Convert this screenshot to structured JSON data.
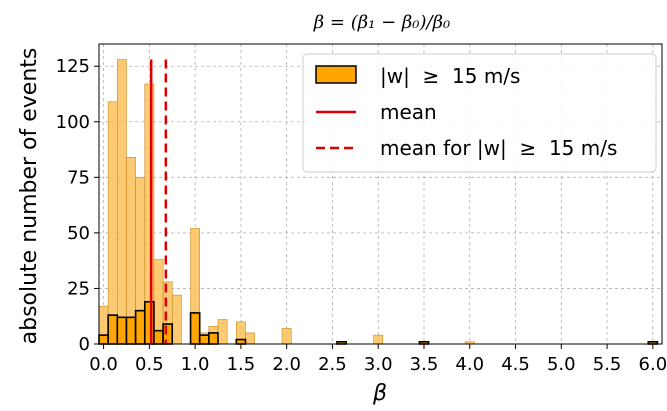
{
  "chart_data": {
    "type": "bar",
    "title": "β = (β₁ − β₀)/β₀",
    "xlabel": "β",
    "ylabel": "absolute number of events",
    "xlim": [
      -0.05,
      6.1
    ],
    "ylim": [
      0,
      135
    ],
    "xticks": [
      0.0,
      0.5,
      1.0,
      1.5,
      2.0,
      2.5,
      3.0,
      3.5,
      4.0,
      4.5,
      5.0,
      5.5,
      6.0
    ],
    "yticks": [
      0,
      25,
      50,
      75,
      100,
      125
    ],
    "grid": true,
    "legend_position": "top-right",
    "bin_width": 0.1,
    "series": [
      {
        "name": "",
        "color": "#fcc15a",
        "bins": [
          [
            -0.05,
            17
          ],
          [
            0.05,
            109
          ],
          [
            0.15,
            128
          ],
          [
            0.25,
            84
          ],
          [
            0.35,
            75
          ],
          [
            0.45,
            117
          ],
          [
            0.55,
            38
          ],
          [
            0.65,
            28
          ],
          [
            0.75,
            22
          ],
          [
            0.95,
            52
          ],
          [
            1.05,
            5
          ],
          [
            1.15,
            8
          ],
          [
            1.25,
            11
          ],
          [
            1.45,
            10
          ],
          [
            1.55,
            5
          ],
          [
            1.95,
            7
          ],
          [
            2.95,
            4
          ],
          [
            3.95,
            1
          ]
        ]
      },
      {
        "name": "|w|  ≥  15 m/s",
        "color": "#ffa500",
        "bins": [
          [
            -0.05,
            4
          ],
          [
            0.05,
            13
          ],
          [
            0.15,
            12
          ],
          [
            0.25,
            12
          ],
          [
            0.35,
            15
          ],
          [
            0.45,
            19
          ],
          [
            0.55,
            6
          ],
          [
            0.65,
            9
          ],
          [
            0.95,
            14
          ],
          [
            1.05,
            4
          ],
          [
            1.15,
            5
          ],
          [
            1.45,
            2
          ],
          [
            2.55,
            1
          ],
          [
            3.45,
            1
          ],
          [
            5.95,
            1
          ]
        ]
      }
    ],
    "lines": [
      {
        "name": "mean",
        "x": 0.52,
        "style": "solid",
        "color": "#dd0000"
      },
      {
        "name": "mean for |w|  ≥  15 m/s",
        "x": 0.68,
        "style": "dashed",
        "color": "#dd0000"
      }
    ]
  }
}
